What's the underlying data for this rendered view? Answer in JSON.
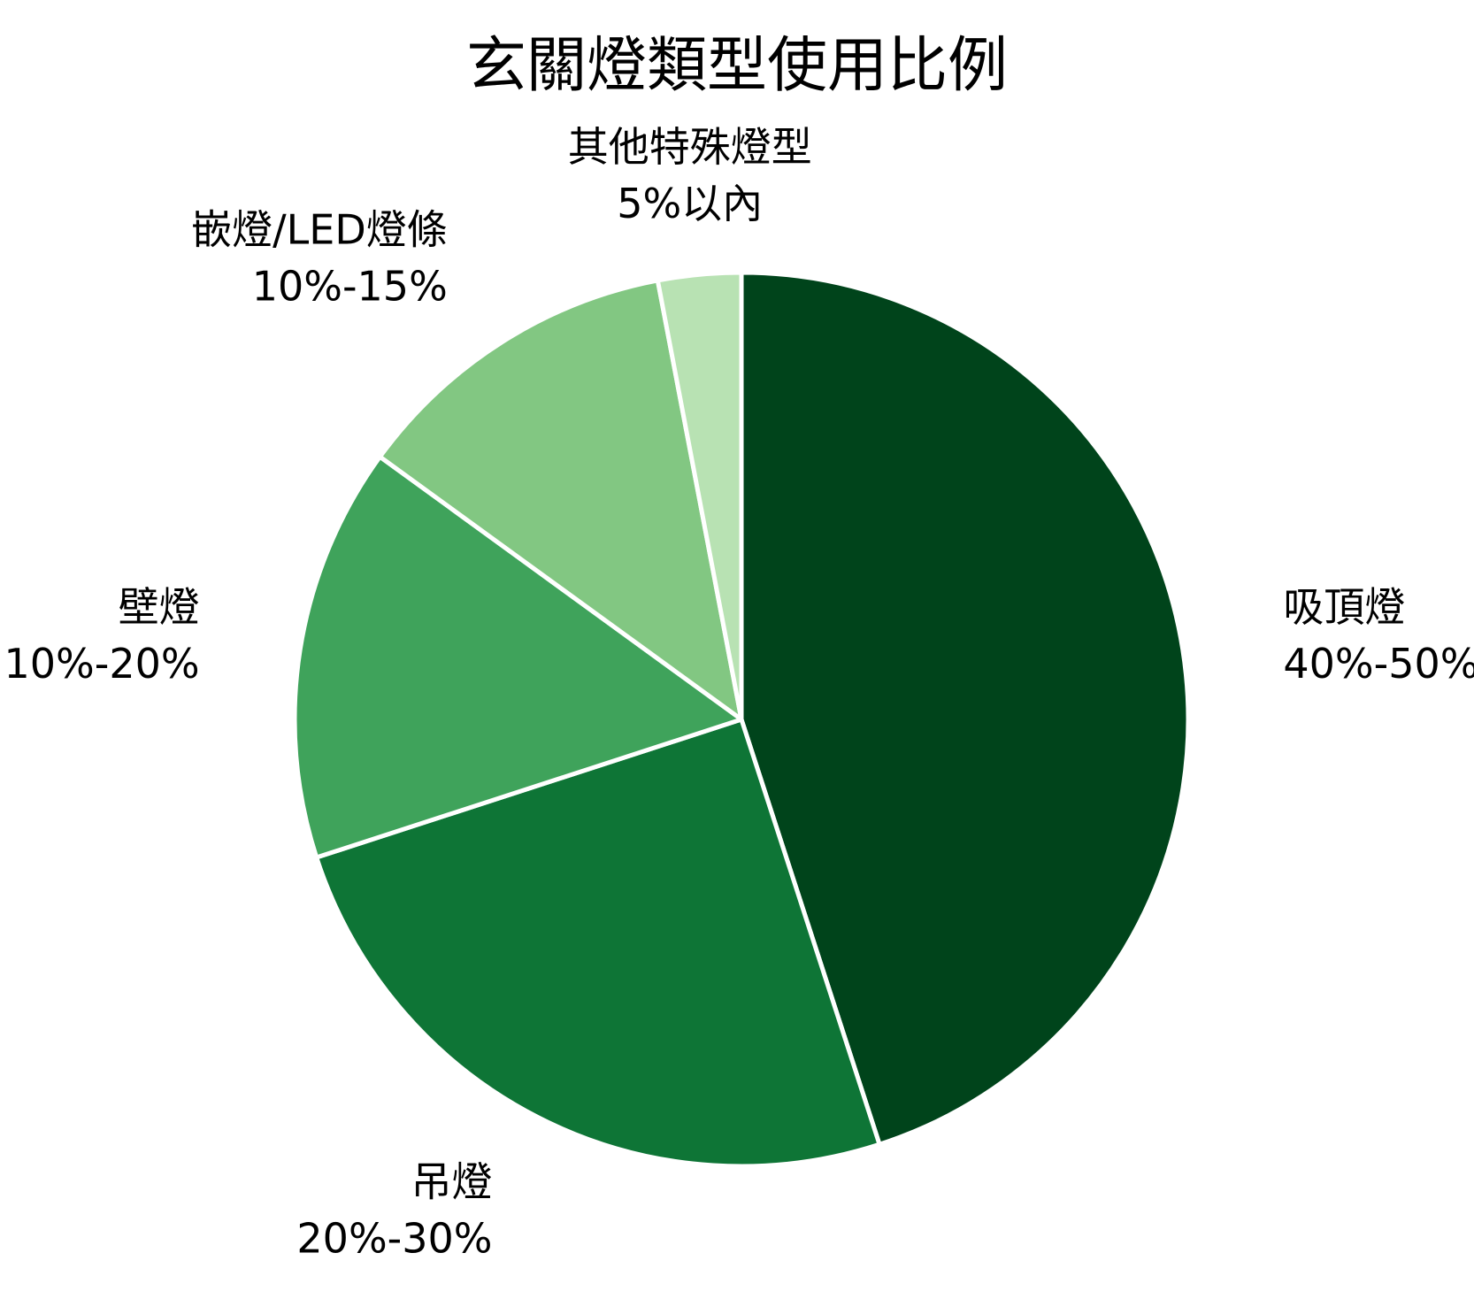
{
  "chart_data": {
    "type": "pie",
    "title": "玄關燈類型使用比例",
    "start_angle": "top",
    "direction": "clockwise",
    "slices": [
      {
        "name": "吸頂燈",
        "range_label": "40%-50%",
        "value": 45,
        "color": "#00441b"
      },
      {
        "name": "吊燈",
        "range_label": "20%-30%",
        "value": 25,
        "color": "#0e7536"
      },
      {
        "name": "壁燈",
        "range_label": "10%-20%",
        "value": 15,
        "color": "#3fa35b"
      },
      {
        "name": "嵌燈/LED燈條",
        "range_label": "10%-15%",
        "value": 12,
        "color": "#82c782"
      },
      {
        "name": "其他特殊燈型",
        "range_label": "5%以內",
        "value": 3,
        "color": "#b8e2b3"
      }
    ]
  }
}
